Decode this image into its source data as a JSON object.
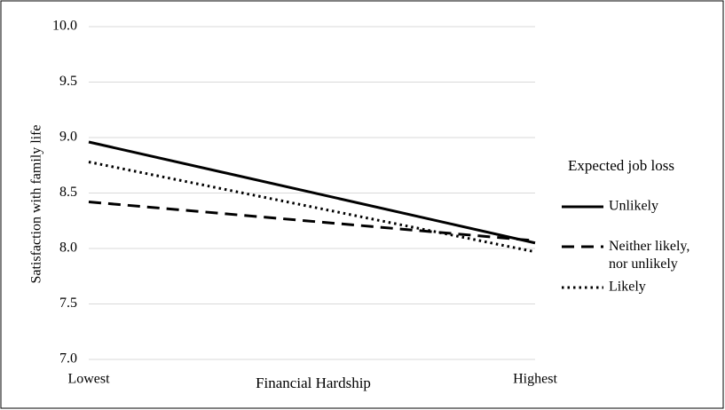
{
  "chart_data": {
    "type": "line",
    "y_label": "Satisfaction with family life",
    "x_label": "Financial Hardship",
    "categories": [
      "Lowest",
      "Highest"
    ],
    "series": [
      {
        "name": "Unlikely",
        "color": "#000000",
        "dash": "solid",
        "values": [
          8.96,
          8.05
        ]
      },
      {
        "name": "Neither likely, nor unlikely",
        "color": "#000000",
        "dash": "dashed",
        "values": [
          8.42,
          8.07
        ]
      },
      {
        "name": "Likely",
        "color": "#000000",
        "dash": "dotted",
        "values": [
          8.78,
          7.97
        ]
      }
    ],
    "ylim": [
      7,
      10
    ],
    "yticks": [
      {
        "value": 7,
        "label": "7.0"
      },
      7.5,
      {
        "value": 8,
        "label": "8.0"
      },
      8.5,
      {
        "value": 9,
        "label": "9.0"
      },
      9.5,
      {
        "value": 10,
        "label": "10.0"
      }
    ],
    "grid": true,
    "legend": {
      "title": "Expected job loss",
      "position": "right"
    }
  }
}
